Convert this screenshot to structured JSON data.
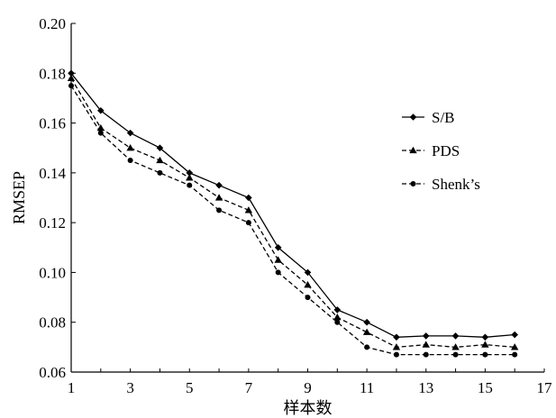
{
  "chart_data": {
    "type": "line",
    "title": "",
    "xlabel": "样本数",
    "ylabel": "RMSEP",
    "xlim": [
      1,
      17
    ],
    "ylim": [
      0.06,
      0.2
    ],
    "xticks": [
      "1",
      "3",
      "5",
      "7",
      "9",
      "11",
      "13",
      "15",
      "17"
    ],
    "yticks": [
      "0.06",
      "0.08",
      "0.10",
      "0.12",
      "0.14",
      "0.16",
      "0.18",
      "0.20"
    ],
    "grid": false,
    "legend_position": "right",
    "x": [
      1,
      2,
      3,
      4,
      5,
      6,
      7,
      8,
      9,
      10,
      11,
      12,
      13,
      14,
      15,
      16
    ],
    "series": [
      {
        "name": "S/B",
        "line_style": "solid",
        "marker": "diamond",
        "values": [
          0.18,
          0.165,
          0.156,
          0.15,
          0.14,
          0.135,
          0.13,
          0.11,
          0.1,
          0.085,
          0.08,
          0.074,
          0.0745,
          0.0745,
          0.074,
          0.075
        ]
      },
      {
        "name": "PDS",
        "line_style": "dashed",
        "marker": "triangle",
        "values": [
          0.178,
          0.158,
          0.15,
          0.145,
          0.138,
          0.13,
          0.125,
          0.105,
          0.095,
          0.082,
          0.076,
          0.07,
          0.071,
          0.07,
          0.071,
          0.07
        ]
      },
      {
        "name": "Shenk’s",
        "line_style": "dashed",
        "marker": "circle",
        "values": [
          0.175,
          0.156,
          0.145,
          0.14,
          0.135,
          0.125,
          0.12,
          0.1,
          0.09,
          0.08,
          0.07,
          0.067,
          0.067,
          0.067,
          0.067,
          0.067
        ]
      }
    ],
    "colors": {
      "line": "#000000",
      "background": "#ffffff"
    }
  }
}
